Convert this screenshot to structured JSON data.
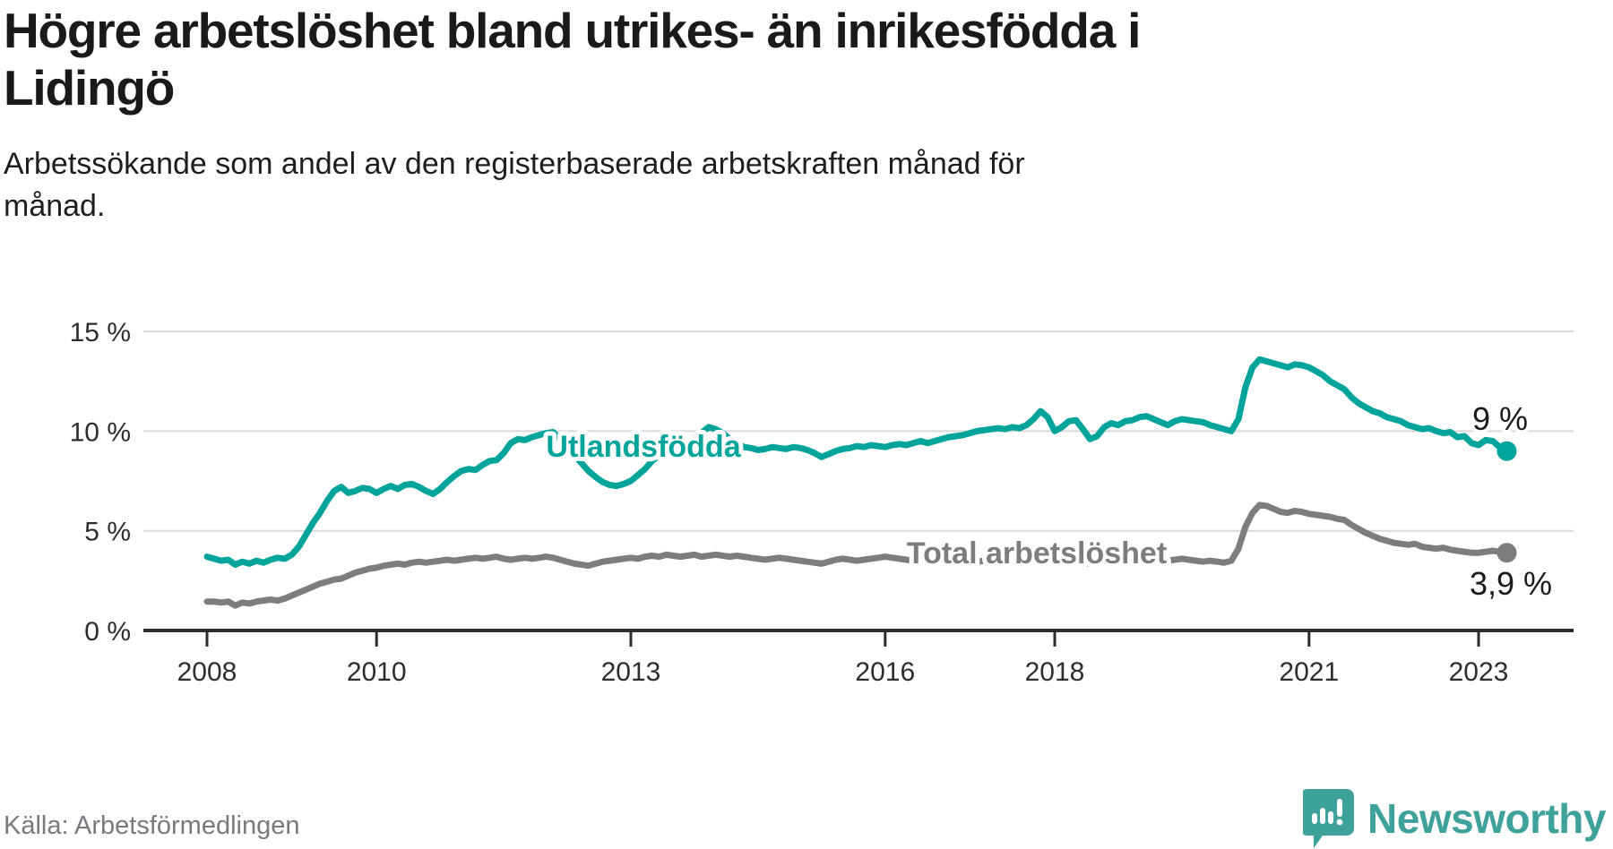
{
  "header": {
    "title": "Högre arbetslöshet bland utrikes- än inrikesfödda i Lidingö",
    "title_lines": [
      "Högre arbetslöshet bland utrikes- än inrikesfödda i",
      "Lidingö"
    ],
    "subtitle": "Arbetssökande som andel av den registerbaserade arbetskraften månad för månad.",
    "subtitle_lines": [
      "Arbetssökande som andel av den registerbaserade arbetskraften månad för",
      "månad."
    ]
  },
  "footer": {
    "source": "Källa: Arbetsförmedlingen",
    "brand": "Newsworthy",
    "logo_icon": "newsworthy-speech-bubble-chart-icon",
    "logo_color": "#3fa19b"
  },
  "colors": {
    "background": "#ffffff",
    "grid": "#d9d9d9",
    "axis": "#2d2d2d",
    "title_text": "#1a1a1a",
    "source_text": "#7a7980"
  },
  "chart_data": {
    "type": "line",
    "title": "Högre arbetslöshet bland utrikes- än inrikesfödda i Lidingö",
    "xlabel": "",
    "ylabel": "",
    "x_unit": "month",
    "x_start": "2008-01",
    "x_end": "2023-05",
    "ylim": [
      0,
      16.6
    ],
    "grid": "horizontal",
    "legend_position": "inline-labels",
    "x_ticks": [
      {
        "year": 2008,
        "label": "2008"
      },
      {
        "year": 2010,
        "label": "2010"
      },
      {
        "year": 2013,
        "label": "2013"
      },
      {
        "year": 2016,
        "label": "2016"
      },
      {
        "year": 2018,
        "label": "2018"
      },
      {
        "year": 2021,
        "label": "2021"
      },
      {
        "year": 2023,
        "label": "2023"
      }
    ],
    "y_ticks": [
      {
        "value": 0,
        "label": "0 %"
      },
      {
        "value": 5,
        "label": "5 %"
      },
      {
        "value": 10,
        "label": "10 %"
      },
      {
        "value": 15,
        "label": "15 %"
      }
    ],
    "series": [
      {
        "name": "Utlandsfödda",
        "color": "#00a49b",
        "end_label": "9 %",
        "end_value": 9.0,
        "values": [
          3.7,
          3.6,
          3.5,
          3.55,
          3.3,
          3.45,
          3.35,
          3.5,
          3.4,
          3.55,
          3.65,
          3.6,
          3.8,
          4.2,
          4.8,
          5.4,
          5.9,
          6.5,
          7.0,
          7.2,
          6.9,
          7.0,
          7.15,
          7.1,
          6.9,
          7.1,
          7.25,
          7.1,
          7.3,
          7.35,
          7.2,
          7.0,
          6.85,
          7.1,
          7.45,
          7.75,
          8.0,
          8.1,
          8.05,
          8.3,
          8.5,
          8.55,
          8.9,
          9.4,
          9.6,
          9.55,
          9.7,
          9.8,
          9.9,
          9.95,
          9.6,
          9.2,
          8.8,
          8.4,
          8.0,
          7.7,
          7.45,
          7.3,
          7.25,
          7.35,
          7.5,
          7.8,
          8.1,
          8.5,
          8.8,
          9.0,
          9.15,
          9.3,
          9.45,
          9.6,
          9.9,
          10.2,
          10.1,
          9.9,
          9.6,
          9.4,
          9.2,
          9.15,
          9.05,
          9.1,
          9.2,
          9.15,
          9.1,
          9.2,
          9.15,
          9.05,
          8.9,
          8.7,
          8.85,
          9.0,
          9.1,
          9.15,
          9.25,
          9.2,
          9.3,
          9.25,
          9.2,
          9.3,
          9.35,
          9.3,
          9.4,
          9.5,
          9.4,
          9.5,
          9.6,
          9.7,
          9.75,
          9.8,
          9.9,
          10.0,
          10.05,
          10.1,
          10.15,
          10.1,
          10.2,
          10.15,
          10.3,
          10.6,
          11.0,
          10.7,
          10.0,
          10.2,
          10.5,
          10.55,
          10.1,
          9.6,
          9.75,
          10.2,
          10.4,
          10.3,
          10.5,
          10.55,
          10.7,
          10.75,
          10.6,
          10.45,
          10.3,
          10.5,
          10.6,
          10.55,
          10.5,
          10.45,
          10.3,
          10.2,
          10.1,
          10.0,
          10.6,
          12.2,
          13.2,
          13.6,
          13.5,
          13.4,
          13.3,
          13.2,
          13.35,
          13.3,
          13.2,
          13.0,
          12.8,
          12.5,
          12.3,
          12.1,
          11.7,
          11.4,
          11.2,
          11.0,
          10.9,
          10.7,
          10.6,
          10.5,
          10.3,
          10.2,
          10.1,
          10.15,
          10.0,
          9.9,
          9.95,
          9.7,
          9.75,
          9.4,
          9.3,
          9.55,
          9.5,
          9.2,
          9.0
        ]
      },
      {
        "name": "Total arbetslöshet",
        "color": "#7d7d7d",
        "end_label": "3,9 %",
        "end_value": 3.9,
        "values": [
          1.45,
          1.45,
          1.4,
          1.45,
          1.25,
          1.4,
          1.35,
          1.45,
          1.5,
          1.55,
          1.5,
          1.6,
          1.75,
          1.9,
          2.05,
          2.2,
          2.35,
          2.45,
          2.55,
          2.6,
          2.75,
          2.9,
          3.0,
          3.1,
          3.15,
          3.25,
          3.3,
          3.35,
          3.3,
          3.4,
          3.45,
          3.4,
          3.45,
          3.5,
          3.55,
          3.5,
          3.55,
          3.6,
          3.65,
          3.6,
          3.65,
          3.7,
          3.6,
          3.55,
          3.6,
          3.65,
          3.6,
          3.65,
          3.7,
          3.65,
          3.55,
          3.45,
          3.35,
          3.3,
          3.25,
          3.35,
          3.45,
          3.5,
          3.55,
          3.6,
          3.65,
          3.6,
          3.7,
          3.75,
          3.7,
          3.8,
          3.75,
          3.7,
          3.75,
          3.8,
          3.7,
          3.75,
          3.8,
          3.75,
          3.7,
          3.75,
          3.7,
          3.65,
          3.6,
          3.55,
          3.6,
          3.65,
          3.6,
          3.55,
          3.5,
          3.45,
          3.4,
          3.35,
          3.45,
          3.55,
          3.6,
          3.55,
          3.5,
          3.55,
          3.6,
          3.65,
          3.7,
          3.65,
          3.6,
          3.55,
          3.5,
          3.55,
          3.5,
          3.45,
          3.5,
          3.55,
          3.5,
          3.45,
          3.5,
          3.45,
          3.5,
          3.55,
          3.5,
          3.45,
          3.5,
          3.55,
          3.5,
          3.55,
          3.6,
          3.55,
          3.5,
          3.45,
          3.5,
          3.45,
          3.4,
          3.35,
          3.4,
          3.45,
          3.4,
          3.45,
          3.5,
          3.45,
          3.5,
          3.55,
          3.5,
          3.45,
          3.5,
          3.55,
          3.6,
          3.55,
          3.5,
          3.45,
          3.5,
          3.45,
          3.4,
          3.5,
          4.1,
          5.2,
          5.9,
          6.3,
          6.25,
          6.1,
          5.95,
          5.9,
          6.0,
          5.95,
          5.85,
          5.8,
          5.75,
          5.7,
          5.6,
          5.55,
          5.3,
          5.1,
          4.9,
          4.75,
          4.6,
          4.5,
          4.4,
          4.35,
          4.3,
          4.35,
          4.2,
          4.15,
          4.1,
          4.15,
          4.05,
          4.0,
          3.95,
          3.9,
          3.9,
          3.95,
          4.0,
          3.95,
          3.9
        ]
      }
    ]
  }
}
